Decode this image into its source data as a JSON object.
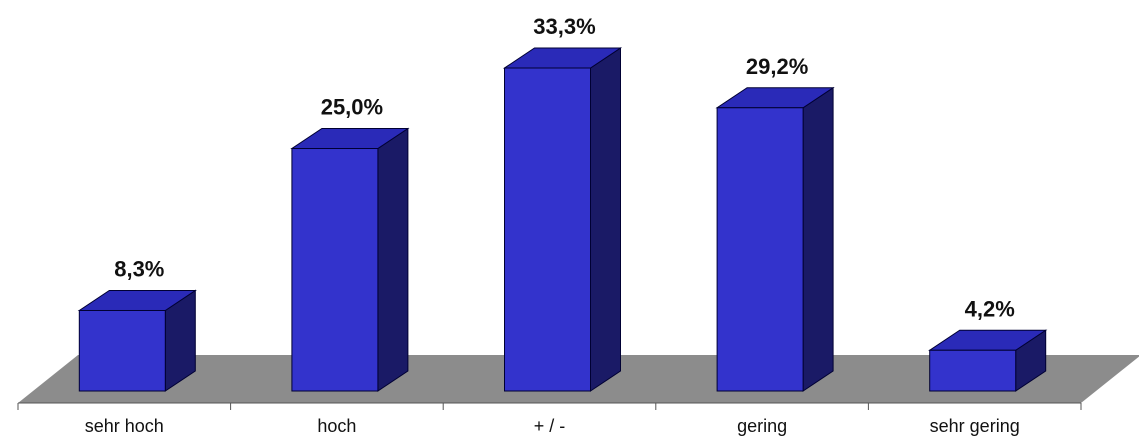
{
  "chart_data": {
    "type": "bar",
    "categories": [
      "sehr hoch",
      "hoch",
      "+ / -",
      "gering",
      "sehr gering"
    ],
    "values": [
      8.3,
      25.0,
      33.3,
      29.2,
      4.2
    ],
    "value_labels": [
      "8,3%",
      "25,0%",
      "33,3%",
      "29,2%",
      "4,2%"
    ],
    "unit": "%",
    "title": "",
    "xlabel": "",
    "ylabel": "",
    "ylim": [
      0,
      35
    ],
    "grid": false,
    "legend": "none",
    "style": "3d-columns"
  },
  "colors": {
    "bar_front": "#3333cc",
    "bar_top": "#2a2ab8",
    "bar_side": "#1a1a66",
    "floor": "#8c8c8c",
    "axis": "#555555",
    "text": "#111111"
  }
}
